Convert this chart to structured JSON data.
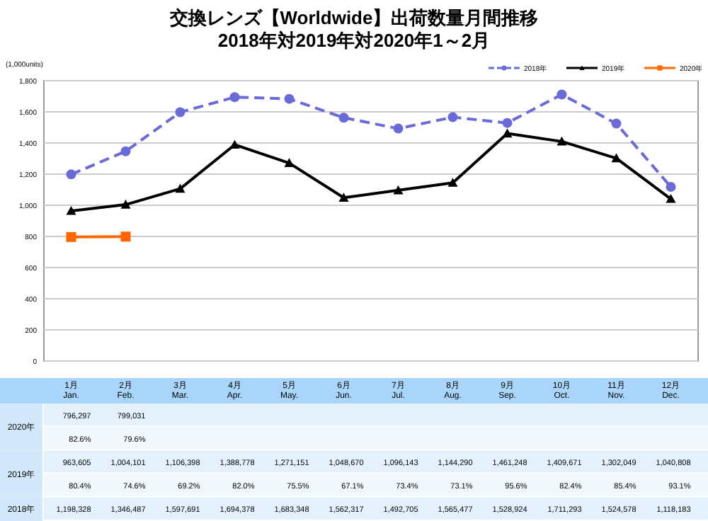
{
  "chart_data": {
    "type": "line",
    "title": "交換レンズ【Worldwide】出荷数量月間推移",
    "subtitle": "2018年対2019年対2020年1～2月",
    "ylabel": "(1,000units)",
    "categories": [
      "1月\nJan.",
      "2月\nFeb.",
      "3月\nMar.",
      "4月\nApr.",
      "5月\nMay.",
      "6月\nJun.",
      "7月\nJul.",
      "8月\nAug.",
      "9月\nSep.",
      "10月\nOct.",
      "11月\nNov.",
      "12月\nDec."
    ],
    "ylim": [
      0,
      1800
    ],
    "yticks": [
      0,
      200,
      400,
      600,
      800,
      {
        "value": 1000,
        "label": "1,000"
      },
      {
        "value": 1200,
        "label": "1,200"
      },
      {
        "value": 1400,
        "label": "1,400"
      },
      {
        "value": 1600,
        "label": "1,600"
      },
      {
        "value": 1800,
        "label": "1,800"
      }
    ],
    "grid": "y",
    "legend": "top right",
    "series": [
      {
        "name": "2018年",
        "color": "#6a6ad8",
        "marker": "circle",
        "line_style": "dashed",
        "values": [
          1198.328,
          1346.487,
          1597.691,
          1694.378,
          1683.348,
          1562.317,
          1492.705,
          1565.477,
          1528.924,
          1711.293,
          1524.578,
          1118.183
        ]
      },
      {
        "name": "2019年",
        "color": "#000000",
        "marker": "triangle",
        "line_style": "solid",
        "values": [
          963.605,
          1004.101,
          1106.398,
          1388.778,
          1271.151,
          1048.67,
          1096.143,
          1144.29,
          1461.248,
          1409.671,
          1302.049,
          1040.808
        ]
      },
      {
        "name": "2020年",
        "color": "#ff6600",
        "marker": "square",
        "line_style": "solid",
        "values": [
          796.297,
          799.031,
          null,
          null,
          null,
          null,
          null,
          null,
          null,
          null,
          null,
          null
        ]
      }
    ],
    "annotations": [
      "796,297",
      "799,031",
      "82.6%",
      "79.6%",
      "963,605",
      "1,004,101",
      "1,106,398",
      "1,388,778",
      "1,271,151",
      "1,048,670",
      "1,096,143",
      "1,144,290",
      "1,461,248",
      "1,409,671",
      "1,302,049",
      "1,040,808",
      "80.4%",
      "74.6%",
      "69.2%",
      "82.0%",
      "75.5%",
      "67.1%",
      "73.4%",
      "73.1%",
      "95.6%",
      "82.4%",
      "85.4%",
      "93.1%",
      "1,198,328",
      "1,346,487",
      "1,597,691",
      "1,694,378",
      "1,683,348",
      "1,562,317",
      "1,492,705",
      "1,565,477",
      "1,528,924",
      "1,711,293",
      "1,524,578",
      "1,118,183"
    ]
  }
}
